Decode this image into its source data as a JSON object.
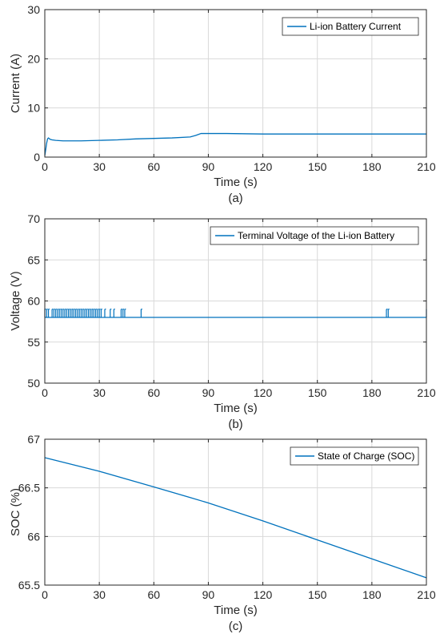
{
  "colors": {
    "series": "#0072BD",
    "grid": "#d9d9d9",
    "axis": "#262626"
  },
  "chart_data": [
    {
      "type": "line",
      "caption": "(a)",
      "xlabel": "Time (s)",
      "ylabel": "Current (A)",
      "xlim": [
        0,
        210
      ],
      "ylim": [
        0,
        30
      ],
      "xticks": [
        0,
        30,
        60,
        90,
        120,
        150,
        180,
        210
      ],
      "yticks": [
        0,
        10,
        20,
        30
      ],
      "grid": true,
      "legend_position": "top-right",
      "series": [
        {
          "name": "Li-ion Battery Current",
          "x": [
            0,
            0.5,
            1,
            1.5,
            2,
            3,
            4,
            6,
            10,
            20,
            30,
            40,
            50,
            60,
            70,
            80,
            83,
            86,
            90,
            100,
            120,
            150,
            180,
            210
          ],
          "y": [
            0.3,
            1.5,
            2.8,
            3.7,
            3.9,
            3.6,
            3.5,
            3.4,
            3.3,
            3.3,
            3.4,
            3.5,
            3.7,
            3.8,
            3.9,
            4.1,
            4.4,
            4.8,
            4.8,
            4.8,
            4.7,
            4.7,
            4.7,
            4.7
          ]
        }
      ]
    },
    {
      "type": "line",
      "caption": "(b)",
      "xlabel": "Time (s)",
      "ylabel": "Voltage (V)",
      "xlim": [
        0,
        210
      ],
      "ylim": [
        50,
        70
      ],
      "xticks": [
        0,
        30,
        60,
        90,
        120,
        150,
        180,
        210
      ],
      "yticks": [
        50,
        55,
        60,
        65,
        70
      ],
      "grid": true,
      "legend_position": "top-right",
      "series": [
        {
          "name": "Terminal Voltage of the Li-ion Battery",
          "base": 58,
          "spike_level": 59,
          "x": [
            0,
            2,
            4,
            5,
            6,
            7,
            8,
            9,
            10,
            11,
            12,
            13,
            14,
            15,
            16,
            17,
            18,
            19,
            20,
            21,
            22,
            23,
            24,
            25,
            26,
            27,
            28,
            29,
            30,
            31,
            33,
            36,
            38,
            42,
            43,
            44,
            53,
            188,
            189,
            210
          ],
          "spike_x": [
            0,
            1,
            2,
            4,
            5,
            6,
            7,
            8,
            9,
            10,
            11,
            12,
            13,
            14,
            15,
            16,
            17,
            18,
            19,
            20,
            21,
            22,
            23,
            24,
            25,
            26,
            27,
            28,
            29,
            30,
            31,
            33,
            36,
            38,
            42,
            43,
            44,
            53,
            188,
            189,
            210
          ]
        }
      ]
    },
    {
      "type": "line",
      "caption": "(c)",
      "xlabel": "Time (s)",
      "ylabel": "SOC (%)",
      "xlim": [
        0,
        210
      ],
      "ylim": [
        65.5,
        67
      ],
      "xticks": [
        0,
        30,
        60,
        90,
        120,
        150,
        180,
        210
      ],
      "yticks": [
        65.5,
        66,
        66.5,
        67
      ],
      "ytick_labels": [
        "65.5",
        "66",
        "66.5",
        "67"
      ],
      "grid": true,
      "legend_position": "top-right",
      "series": [
        {
          "name": "State of Charge (SOC)",
          "x": [
            0,
            30,
            60,
            80,
            90,
            120,
            150,
            180,
            210
          ],
          "y": [
            66.81,
            66.67,
            66.51,
            66.4,
            66.345,
            66.16,
            65.965,
            65.77,
            65.575
          ]
        }
      ]
    }
  ]
}
